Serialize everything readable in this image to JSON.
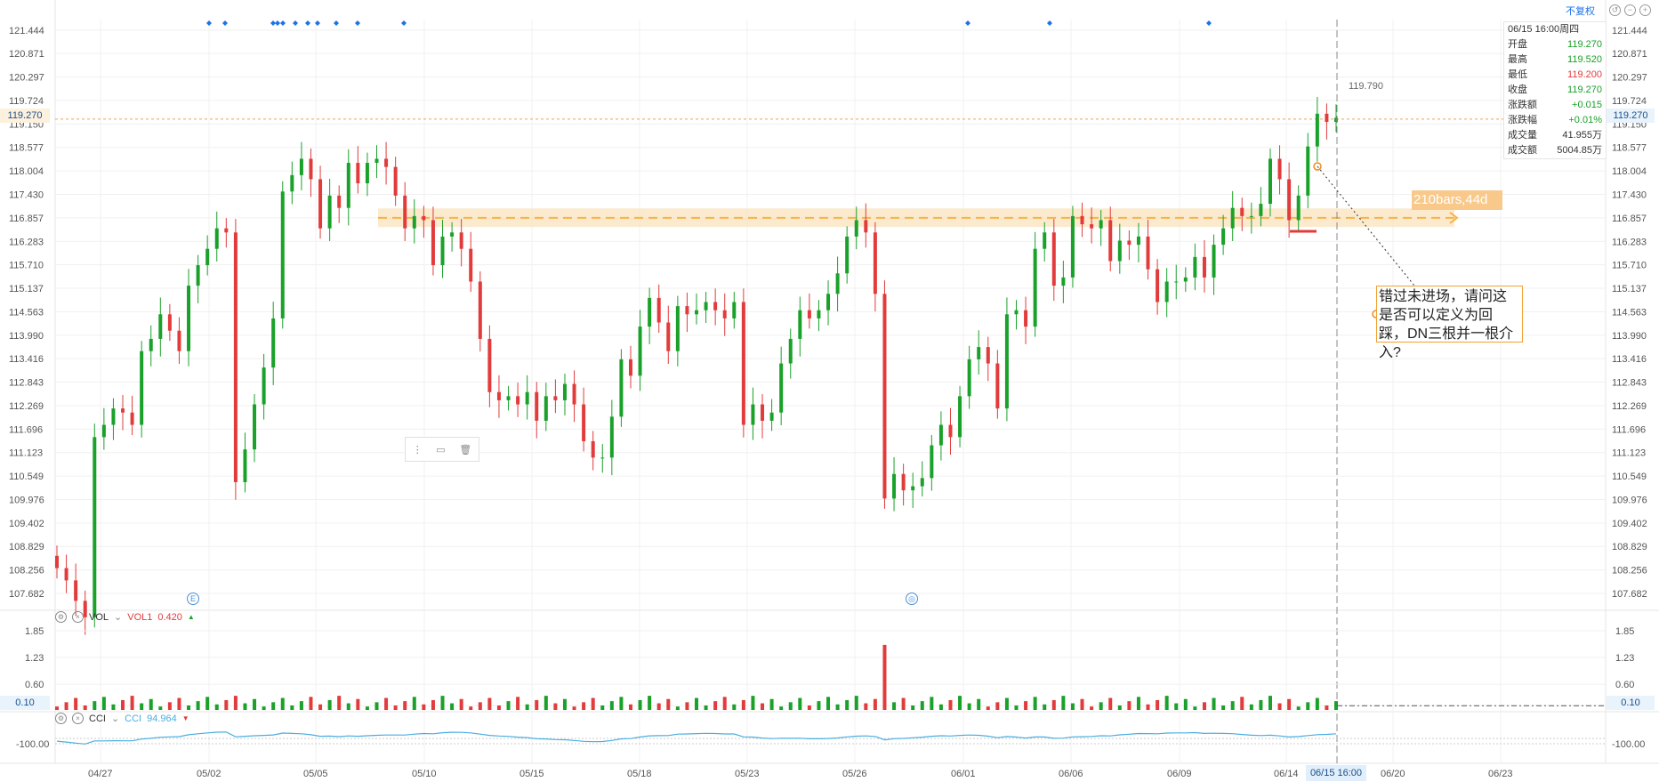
{
  "header": {
    "adjust_label": "不复权",
    "window_icons": [
      "undo-icon",
      "minimize-icon",
      "add-icon"
    ]
  },
  "info_panel": {
    "time": "06/15 16:00周四",
    "rows": [
      {
        "label": "开盘",
        "value": "119.270",
        "color": "green"
      },
      {
        "label": "最高",
        "value": "119.520",
        "color": "green"
      },
      {
        "label": "最低",
        "value": "119.200",
        "color": "red"
      },
      {
        "label": "收盘",
        "value": "119.270",
        "color": "green"
      },
      {
        "label": "涨跌额",
        "value": "+0.015",
        "color": "green"
      },
      {
        "label": "涨跌幅",
        "value": "+0.01%",
        "color": "green"
      },
      {
        "label": "成交量",
        "value": "41.955万",
        "color": "dark"
      },
      {
        "label": "成交额",
        "value": "5004.85万",
        "color": "dark"
      }
    ]
  },
  "current_price_label": "119.270",
  "high_label": "119.790",
  "volume_panel": {
    "title": "VOL",
    "series_label": "VOL1",
    "series_value": "0.420",
    "current_label": "0.10"
  },
  "cci_panel": {
    "title": "CCI",
    "series_label": "CCI",
    "series_value": "94.964"
  },
  "annotation": {
    "text": "错过未进场，请问这是否可以定义为回踩，DN三根并一根介入?",
    "bars_label": "210bars,44d"
  },
  "event_markers": [
    "E",
    "◎"
  ],
  "time_tag": "06/15 16:00",
  "colors": {
    "up": "#1aa12a",
    "down": "#e23b3b",
    "cci_line": "#4aaee0",
    "zone": "#f7b24a",
    "accent": "#1a73e8"
  },
  "chart_data": [
    {
      "type": "candlestick",
      "title": "",
      "x_tick_labels": [
        "04/27",
        "05/02",
        "05/05",
        "05/10",
        "05/15",
        "05/18",
        "05/23",
        "05/26",
        "06/01",
        "06/06",
        "06/09",
        "06/14",
        "06/20",
        "06/23"
      ],
      "y_tick_labels": [
        "121.444",
        "120.871",
        "120.297",
        "119.724",
        "119.150",
        "118.577",
        "118.004",
        "117.430",
        "116.857",
        "116.283",
        "115.710",
        "115.137",
        "114.563",
        "113.990",
        "113.416",
        "112.843",
        "112.269",
        "111.696",
        "111.123",
        "110.549",
        "109.976",
        "109.402",
        "108.829",
        "108.256",
        "107.682"
      ],
      "ylim": [
        107.4,
        121.7
      ],
      "horizontal_zone": {
        "price": 116.857,
        "low": 116.72,
        "high": 117.0
      },
      "closes": [
        108.3,
        108.0,
        107.5,
        107.1,
        111.5,
        111.8,
        112.2,
        112.1,
        111.8,
        113.6,
        113.9,
        114.5,
        114.1,
        113.6,
        115.2,
        115.7,
        116.1,
        116.6,
        116.5,
        110.4,
        111.2,
        112.3,
        113.2,
        114.4,
        117.5,
        117.9,
        118.3,
        117.8,
        116.6,
        117.4,
        117.1,
        118.2,
        117.7,
        118.2,
        118.3,
        118.1,
        117.4,
        116.6,
        116.9,
        116.8,
        115.7,
        116.4,
        116.5,
        116.1,
        115.3,
        113.9,
        112.6,
        112.4,
        112.5,
        112.3,
        112.6,
        111.9,
        112.5,
        112.4,
        112.8,
        112.3,
        111.4,
        111.0,
        111.0,
        112.0,
        113.4,
        113.0,
        114.2,
        114.9,
        114.3,
        113.6,
        114.7,
        114.5,
        114.6,
        114.8,
        114.6,
        114.4,
        114.8,
        111.8,
        112.3,
        111.9,
        112.1,
        113.3,
        113.9,
        114.6,
        114.4,
        114.6,
        115.0,
        115.5,
        116.4,
        116.8,
        116.5,
        115.0,
        110.0,
        110.6,
        110.2,
        110.3,
        110.5,
        111.3,
        111.8,
        111.5,
        112.5,
        113.4,
        113.7,
        113.3,
        112.2,
        114.5,
        114.6,
        114.2,
        116.1,
        116.5,
        115.2,
        115.4,
        116.9,
        116.7,
        116.6,
        116.8,
        115.8,
        116.3,
        116.2,
        116.4,
        115.6,
        114.8,
        115.3,
        115.3,
        115.4,
        115.9,
        115.4,
        116.2,
        116.6,
        117.1,
        116.9,
        116.9,
        117.2,
        118.3,
        117.8,
        116.8,
        117.4,
        118.6,
        119.4,
        119.2,
        119.3
      ]
    },
    {
      "type": "bar",
      "title": "VOL",
      "y_tick_labels": [
        "1.85",
        "1.23",
        "0.60",
        "0.10"
      ],
      "ylim": [
        0,
        1.85
      ],
      "peak_value": 1.52
    },
    {
      "type": "line",
      "title": "CCI",
      "y_tick_labels": [
        "-100.00"
      ],
      "latest_value": 94.964
    }
  ]
}
